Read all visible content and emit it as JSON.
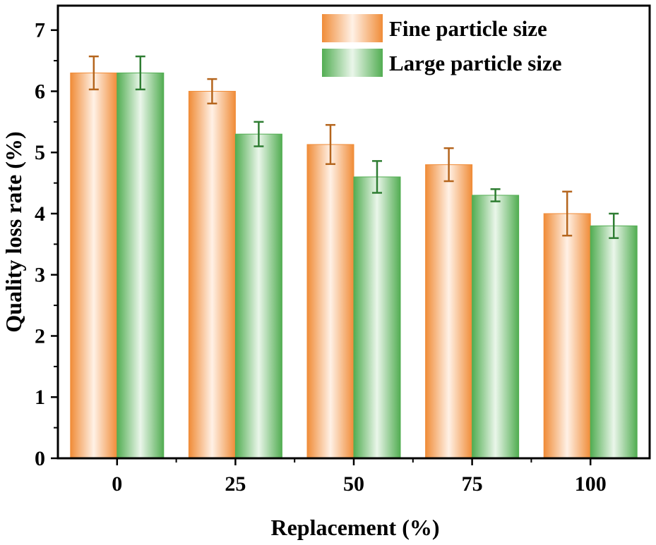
{
  "chart_data": {
    "type": "bar",
    "title": "",
    "xlabel": "Replacement (%)",
    "ylabel": "Quality loss rate (%)",
    "categories": [
      "0",
      "25",
      "50",
      "75",
      "100"
    ],
    "ylim": [
      0,
      7.4
    ],
    "yticks": [
      "0",
      "1",
      "2",
      "3",
      "4",
      "5",
      "6",
      "7"
    ],
    "legend_position": "top-right",
    "series": [
      {
        "name": "Fine particle size",
        "values": [
          6.3,
          6.0,
          5.13,
          4.8,
          4.0
        ],
        "errors": [
          0.27,
          0.2,
          0.32,
          0.27,
          0.36
        ],
        "color": "#f08c38",
        "error_color": "#b5651d"
      },
      {
        "name": "Large particle size",
        "values": [
          6.3,
          5.3,
          4.6,
          4.3,
          3.8
        ],
        "errors": [
          0.27,
          0.2,
          0.26,
          0.1,
          0.2
        ],
        "color": "#52ad52",
        "error_color": "#2e7d32"
      }
    ]
  }
}
